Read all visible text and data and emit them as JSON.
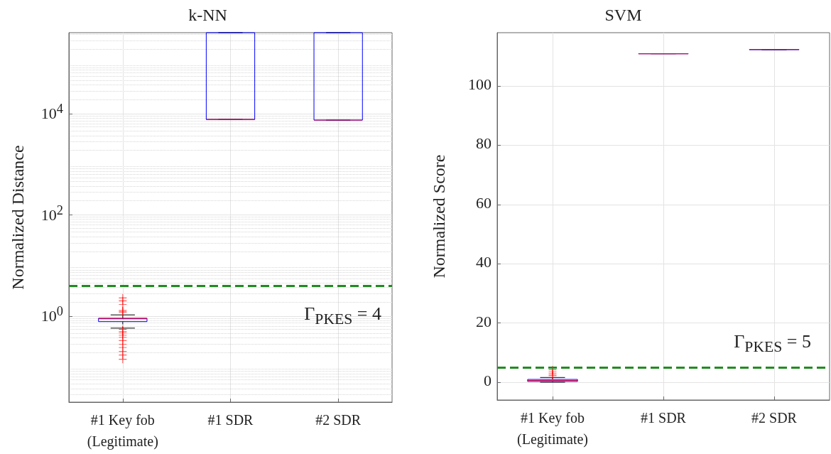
{
  "chart_data": [
    {
      "type": "box",
      "title": "k-NN",
      "ylabel": "Normalized Distance",
      "categories": [
        "#1 Key fob\n(Legitimate)",
        "#1 SDR",
        "#2 SDR"
      ],
      "log": true,
      "ylim": [
        0.02,
        400000
      ],
      "yticks": [
        {
          "value": 1,
          "label": "10$^{0}$"
        },
        {
          "value": 100,
          "label": "10$^{2}$"
        },
        {
          "value": 10000,
          "label": "10$^{4}$"
        }
      ],
      "grid": true,
      "marker": "cross",
      "series": [
        {
          "color": "#0000ff",
          "boxes": [
            {
              "low": 0.58,
              "q1": 0.78,
              "median": 0.89,
              "q3": 0.91,
              "high": 1.06,
              "outliers": [
                2.3,
                2.0,
                1.7,
                1.3,
                1.25,
                1.2,
                0.55,
                0.5,
                0.47,
                0.42,
                0.38,
                0.33,
                0.28,
                0.24,
                0.2,
                0.17,
                0.14
              ]
            },
            {
              "low": 7700,
              "q1": 7700,
              "median": 7700,
              "q3": 400000,
              "high": 400000
            },
            {
              "low": 7500,
              "q1": 7500,
              "median": 7500,
              "q3": 400000,
              "high": 400000
            }
          ]
        }
      ],
      "ref_lines": [
        {
          "axis": "y",
          "value": 4,
          "label": "Γ$_{PKES}$ = 4",
          "color": "#228b22",
          "line_style": "dashed"
        }
      ]
    },
    {
      "type": "box",
      "title": "SVM",
      "ylabel": "Normalized Score",
      "categories": [
        "#1 Key fob\n(Legitimate)",
        "#1 SDR",
        "#2 SDR"
      ],
      "ylim": [
        -6,
        118
      ],
      "yticks": [
        0,
        20,
        40,
        60,
        80,
        100
      ],
      "grid": true,
      "marker": "cross",
      "series": [
        {
          "color": "#0000ff",
          "boxes": [
            {
              "low": 0,
              "q1": 0.26,
              "median": 0.6,
              "q3": 0.95,
              "high": 1.6,
              "outliers": [
                4.2,
                3.5,
                2.8,
                2.2
              ]
            },
            {
              "low": 110.9,
              "q1": 110.9,
              "median": 110.9,
              "q3": 110.9,
              "high": 110.9
            },
            {
              "low": 112.3,
              "q1": 112.3,
              "median": 112.3,
              "q3": 112.3,
              "high": 112.3
            }
          ]
        }
      ],
      "ref_lines": [
        {
          "axis": "y",
          "value": 5,
          "label": "Γ$_{PKES}$ = 5",
          "color": "#228b22",
          "line_style": "dashed"
        }
      ]
    }
  ]
}
